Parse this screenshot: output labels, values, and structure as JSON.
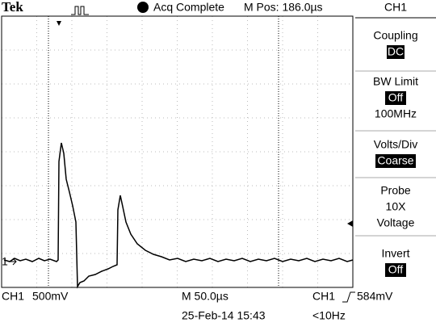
{
  "header": {
    "brand": "Tek",
    "status": "Acq Complete",
    "position": "M Pos: 186.0µs"
  },
  "marker": "1",
  "menu": {
    "title": "CH1",
    "items": [
      {
        "label": "Coupling",
        "value": "DC"
      },
      {
        "label": "BW Limit",
        "value": "Off",
        "extra": "100MHz"
      },
      {
        "label": "Volts/Div",
        "value": "Coarse"
      },
      {
        "label": "Probe",
        "value": "10X",
        "extra": "Voltage"
      },
      {
        "label": "Invert",
        "value": "Off"
      }
    ]
  },
  "footer": {
    "channel": "CH1",
    "scale": "500mV",
    "timebase": "M 50.0µs",
    "trigger_channel": "CH1",
    "trigger_level": "584mV",
    "datetime": "25-Feb-14 15:43",
    "frequency": "<10Hz"
  }
}
